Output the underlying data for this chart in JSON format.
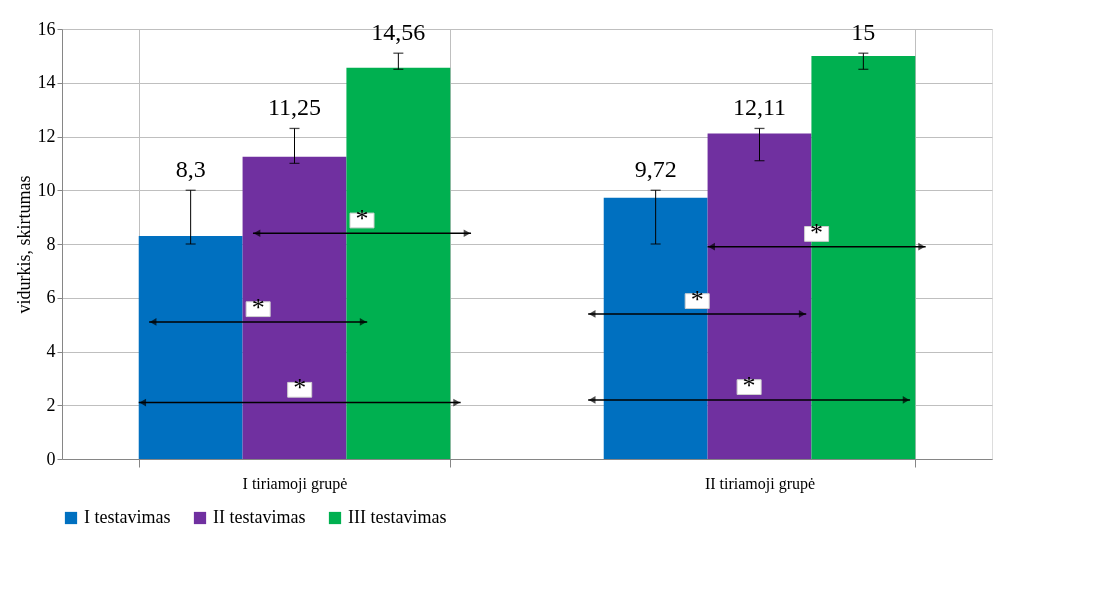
{
  "chart_data": {
    "type": "bar",
    "ylabel": "vidurkis, skirtumas",
    "categories": [
      "I tiriamoji grupė",
      "II tiriamoji grupė"
    ],
    "series": [
      {
        "name": "I testavimas",
        "color": "#0070c0",
        "values": [
          8.3,
          9.72
        ],
        "errors": [
          [
            8,
            10
          ],
          [
            8,
            10
          ]
        ],
        "value_labels": [
          "8,3",
          "9,72"
        ]
      },
      {
        "name": "II testavimas",
        "color": "#7030a0",
        "values": [
          11.25,
          12.11
        ],
        "errors": [
          [
            11,
            12.3
          ],
          [
            11.1,
            12.3
          ]
        ],
        "value_labels": [
          "11,25",
          "12,11"
        ]
      },
      {
        "name": "III testavimas",
        "color": "#00b050",
        "values": [
          14.56,
          15
        ],
        "errors": [
          [
            14.5,
            15.1
          ],
          [
            14.5,
            15.1
          ]
        ],
        "value_labels": [
          "14,56",
          "15"
        ]
      }
    ],
    "ylim": [
      0,
      16
    ],
    "yticks": [
      0,
      2,
      4,
      6,
      8,
      10,
      12,
      14,
      16
    ],
    "grid": true,
    "legend": "bottom",
    "annotations": [
      "*",
      "*",
      "*",
      "*",
      "*",
      "*"
    ]
  }
}
